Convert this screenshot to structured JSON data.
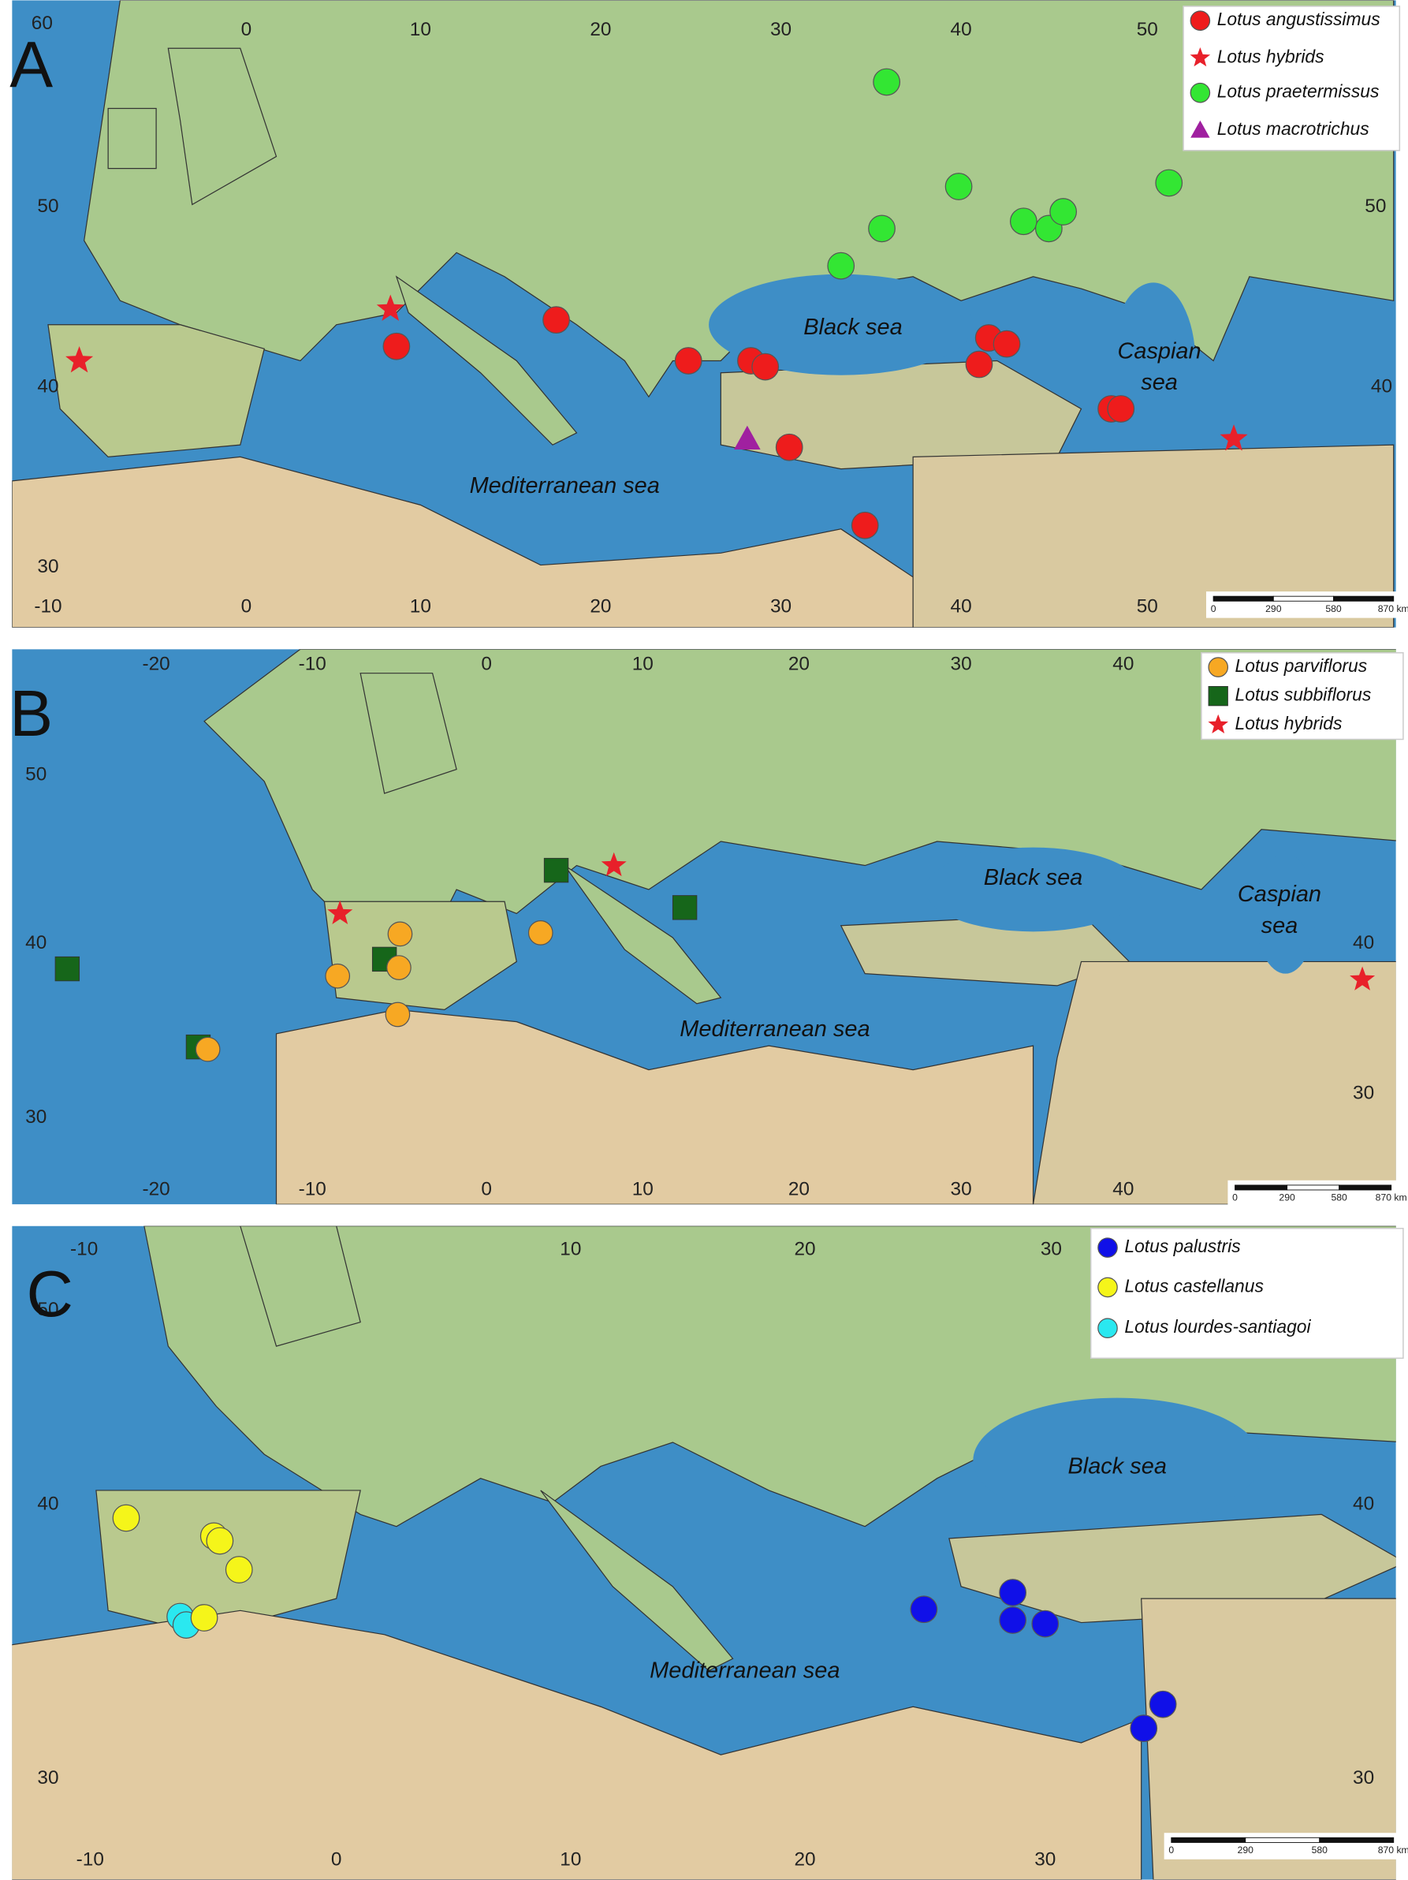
{
  "panels": [
    {
      "label": "A",
      "legend": [
        "Lotus angustissimus",
        "Lotus hybrids",
        "Lotus praetermissus",
        "Lotus macrotrichus"
      ],
      "sea_labels": [
        [
          "Black sea"
        ],
        [
          "Caspian",
          "sea"
        ],
        [
          "Mediterranean sea"
        ]
      ],
      "grid_labels": [
        60,
        0,
        10,
        20,
        30,
        40,
        50,
        50,
        40,
        30,
        50,
        40,
        -10,
        0,
        10,
        20,
        30,
        40,
        50
      ],
      "scale_labels": [
        "0",
        "290",
        "580",
        "870 km"
      ]
    },
    {
      "label": "B",
      "legend": [
        "Lotus parviflorus",
        "Lotus subbiflorus",
        "Lotus hybrids"
      ],
      "sea_labels": [
        [
          "Black sea"
        ],
        [
          "Caspian",
          "sea"
        ],
        [
          "Mediterranean sea"
        ]
      ],
      "grid_labels": [
        -20,
        -10,
        0,
        10,
        20,
        30,
        40,
        50,
        40,
        30,
        40,
        30,
        -20,
        -10,
        0,
        10,
        20,
        30,
        40
      ],
      "scale_labels": [
        "0",
        "290",
        "580",
        "870 km"
      ]
    },
    {
      "label": "C",
      "legend": [
        "Lotus palustris",
        "Lotus castellanus",
        "Lotus lourdes-santiagoi"
      ],
      "sea_labels": [
        [
          "Black sea"
        ],
        [
          "Mediterranean sea"
        ]
      ],
      "grid_labels": [
        -10,
        10,
        20,
        30,
        50,
        40,
        30,
        40,
        30,
        -10,
        0,
        10,
        20,
        30
      ],
      "scale_labels": [
        "0",
        "290",
        "580",
        "870 km"
      ]
    }
  ]
}
